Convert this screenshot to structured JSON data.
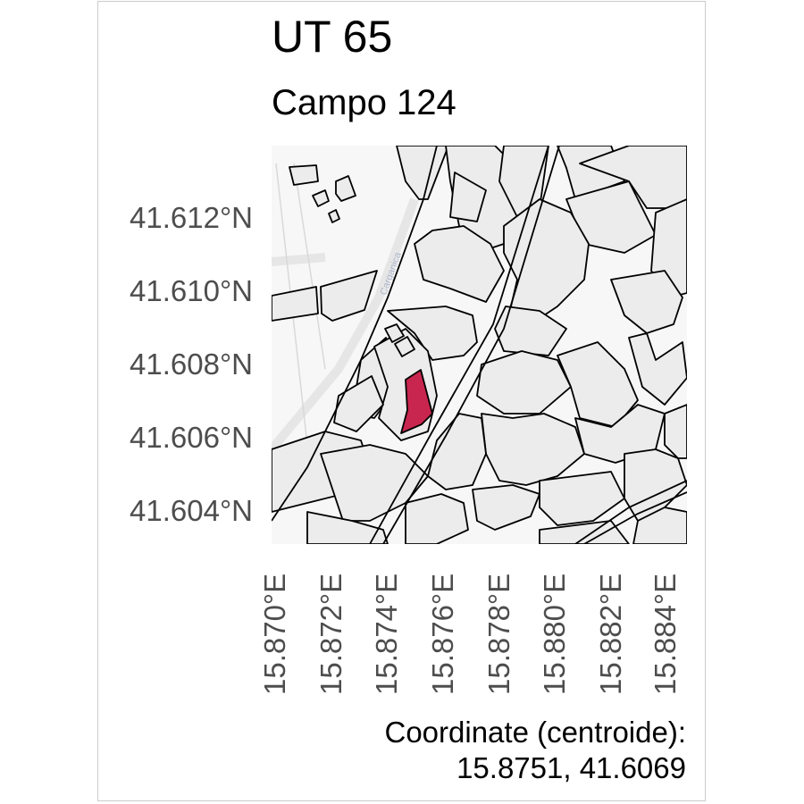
{
  "header": {
    "title": "UT 65",
    "subtitle": "Campo 124"
  },
  "map": {
    "road_label": "Carganica",
    "highlight_color": "#c8264f",
    "parcel_fill": "#ececec",
    "basemap_fill": "#f7f7f7"
  },
  "axes": {
    "lat_ticks": [
      "41.612°N",
      "41.610°N",
      "41.608°N",
      "41.606°N",
      "41.604°N"
    ],
    "lon_ticks": [
      "15.870°E",
      "15.872°E",
      "15.874°E",
      "15.876°E",
      "15.878°E",
      "15.880°E",
      "15.882°E",
      "15.884°E"
    ]
  },
  "caption": {
    "line1": "Coordinate (centroide):",
    "line2": "15.8751, 41.6069"
  }
}
